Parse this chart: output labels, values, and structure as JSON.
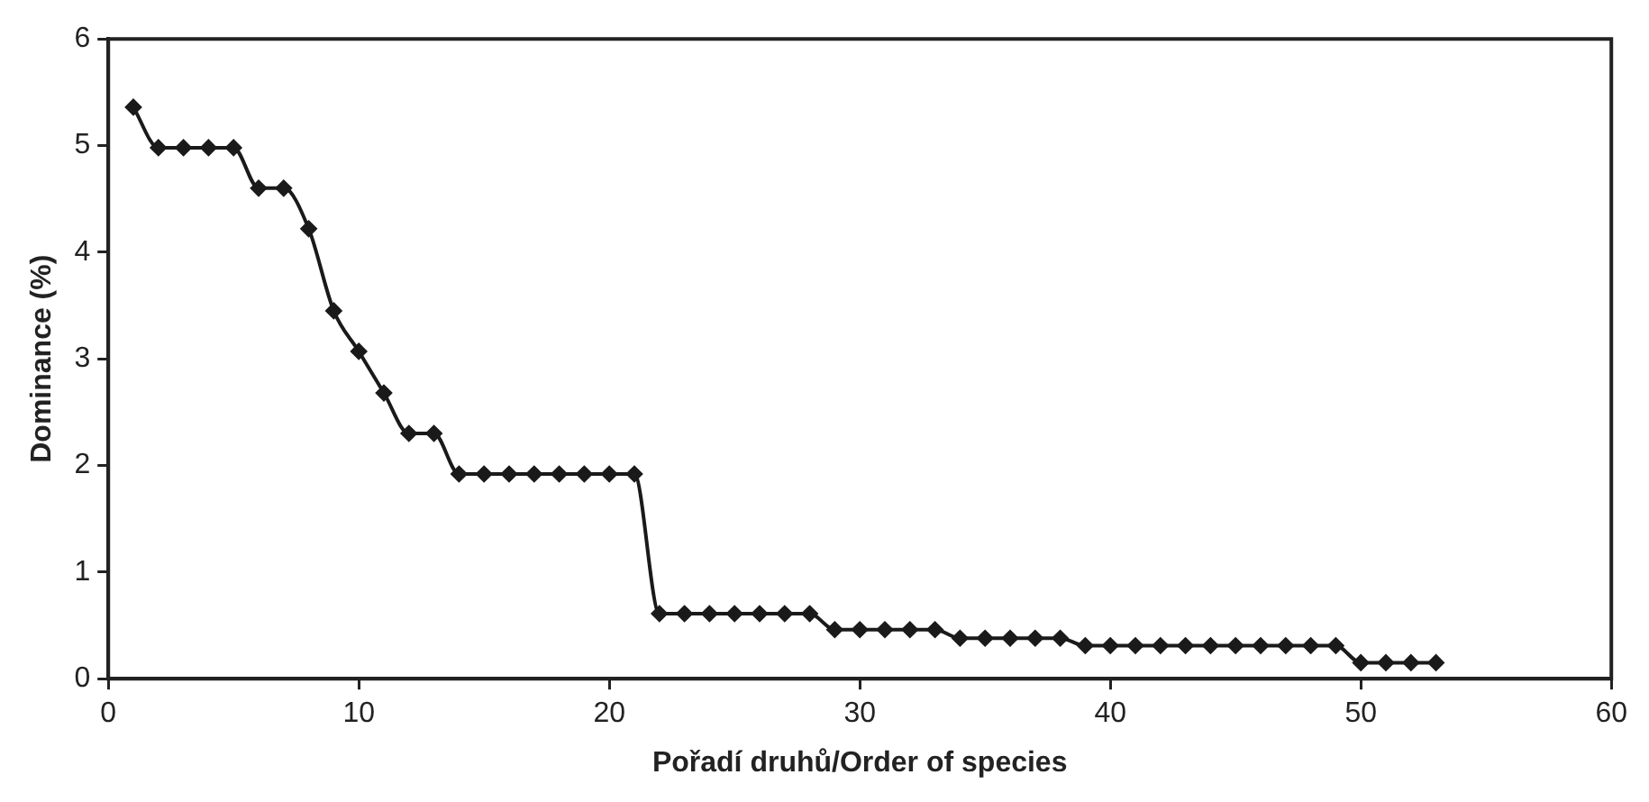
{
  "chart_data": {
    "type": "line",
    "xlabel": "Pořadí druhů/Order of species",
    "ylabel": "Dominance (%)",
    "x": [
      1,
      2,
      3,
      4,
      5,
      6,
      7,
      8,
      9,
      10,
      11,
      12,
      13,
      14,
      15,
      16,
      17,
      18,
      19,
      20,
      21,
      22,
      23,
      24,
      25,
      26,
      27,
      28,
      29,
      30,
      31,
      32,
      33,
      34,
      35,
      36,
      37,
      38,
      39,
      40,
      41,
      42,
      43,
      44,
      45,
      46,
      47,
      48,
      49,
      50,
      51,
      52,
      53
    ],
    "series": [
      {
        "color": "#1a1a1a",
        "values": [
          5.36,
          4.98,
          4.98,
          4.98,
          4.98,
          4.6,
          4.6,
          4.22,
          3.45,
          3.07,
          2.68,
          2.3,
          2.3,
          1.92,
          1.92,
          1.92,
          1.92,
          1.92,
          1.92,
          1.92,
          1.92,
          0.61,
          0.61,
          0.61,
          0.61,
          0.61,
          0.61,
          0.61,
          0.46,
          0.46,
          0.46,
          0.46,
          0.46,
          0.38,
          0.38,
          0.38,
          0.38,
          0.38,
          0.31,
          0.31,
          0.31,
          0.31,
          0.31,
          0.31,
          0.31,
          0.31,
          0.31,
          0.31,
          0.31,
          0.15,
          0.15,
          0.15,
          0.15
        ]
      }
    ],
    "xlim": [
      0,
      60
    ],
    "xticks": [
      0,
      10,
      20,
      30,
      40,
      50,
      60
    ],
    "ylim": [
      0,
      6
    ],
    "yticks": [
      0,
      1,
      2,
      3,
      4,
      5,
      6
    ],
    "grid": false,
    "legend": false,
    "marker": "diamond",
    "line_style": "solid"
  }
}
